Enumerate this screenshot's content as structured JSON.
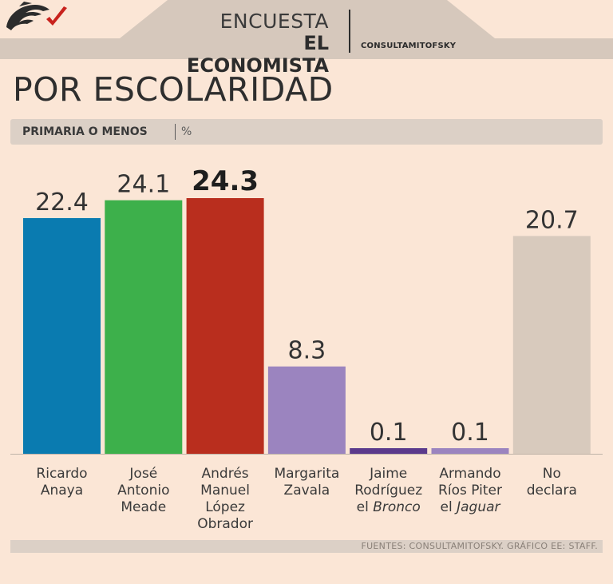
{
  "header": {
    "line1": "ENCUESTA",
    "line2": "EL ECONOMISTA",
    "logo_text": "CONSULTAMITOFSKY"
  },
  "title": "POR ESCOLARIDAD",
  "subhead": {
    "label": "PRIMARIA O MENOS",
    "unit": "%"
  },
  "footer": "FUENTES: CONSULTAMITOFSKY. GRÁFICO EE: STAFF.",
  "colors": {
    "background": "#fbe6d6",
    "band": "#dcd0c6"
  },
  "chart_data": {
    "type": "bar",
    "title": "POR ESCOLARIDAD",
    "ylabel": "%",
    "ylim": [
      0,
      25
    ],
    "grid": false,
    "categories": [
      [
        "Ricardo",
        "Anaya"
      ],
      [
        "José",
        "Antonio",
        "Meade"
      ],
      [
        "Andrés",
        "Manuel",
        "López",
        "Obrador"
      ],
      [
        "Margarita",
        "Zavala"
      ],
      [
        "Jaime",
        "Rodríguez",
        "el Bronco"
      ],
      [
        "Armando",
        "Ríos Piter",
        "el Jaguar"
      ],
      [
        "No",
        "declara"
      ]
    ],
    "italic_words": [
      "Bronco",
      "Jaguar"
    ],
    "values": [
      22.4,
      24.1,
      24.3,
      8.3,
      0.1,
      0.1,
      20.7
    ],
    "value_labels": [
      "22.4",
      "24.1",
      "24.3",
      "8.3",
      "0.1",
      "0.1",
      "20.7"
    ],
    "highlight_index": 2,
    "bar_colors": [
      "#0a7bb0",
      "#3db04b",
      "#b92e1e",
      "#9b84bf",
      "#5b3a8c",
      "#9b84bf",
      "#d8cabd"
    ]
  }
}
